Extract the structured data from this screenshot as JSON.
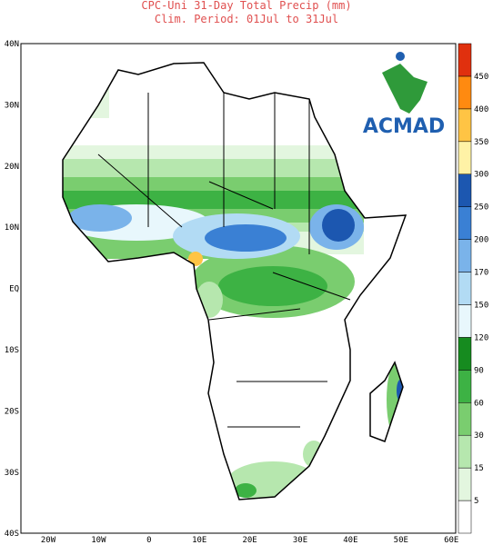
{
  "title": {
    "line1": "CPC-Uni 31-Day Total Precip (mm)",
    "line2": "Clim. Period: 01Jul to 31Jul"
  },
  "logo": {
    "text": "ACMAD"
  },
  "axes": {
    "lat_labels": [
      "40N",
      "30N",
      "20N",
      "10N",
      "EQ",
      "10S",
      "20S",
      "30S",
      "40S"
    ],
    "lon_labels": [
      "20W",
      "10W",
      "0",
      "10E",
      "20E",
      "30E",
      "40E",
      "50E",
      "60E"
    ]
  },
  "colorbar": {
    "levels": [
      5,
      15,
      30,
      60,
      90,
      120,
      150,
      170,
      200,
      250,
      300,
      350,
      400,
      450
    ],
    "colors": [
      "#ffffff",
      "#e3f6df",
      "#b6e7ae",
      "#7acd6f",
      "#3db244",
      "#168b1f",
      "#e8f7fc",
      "#b2dbf4",
      "#7ab3ea",
      "#3a80d4",
      "#1c57b0",
      "#fff2a6",
      "#ffc444",
      "#ff8a10",
      "#e0300e"
    ]
  }
}
